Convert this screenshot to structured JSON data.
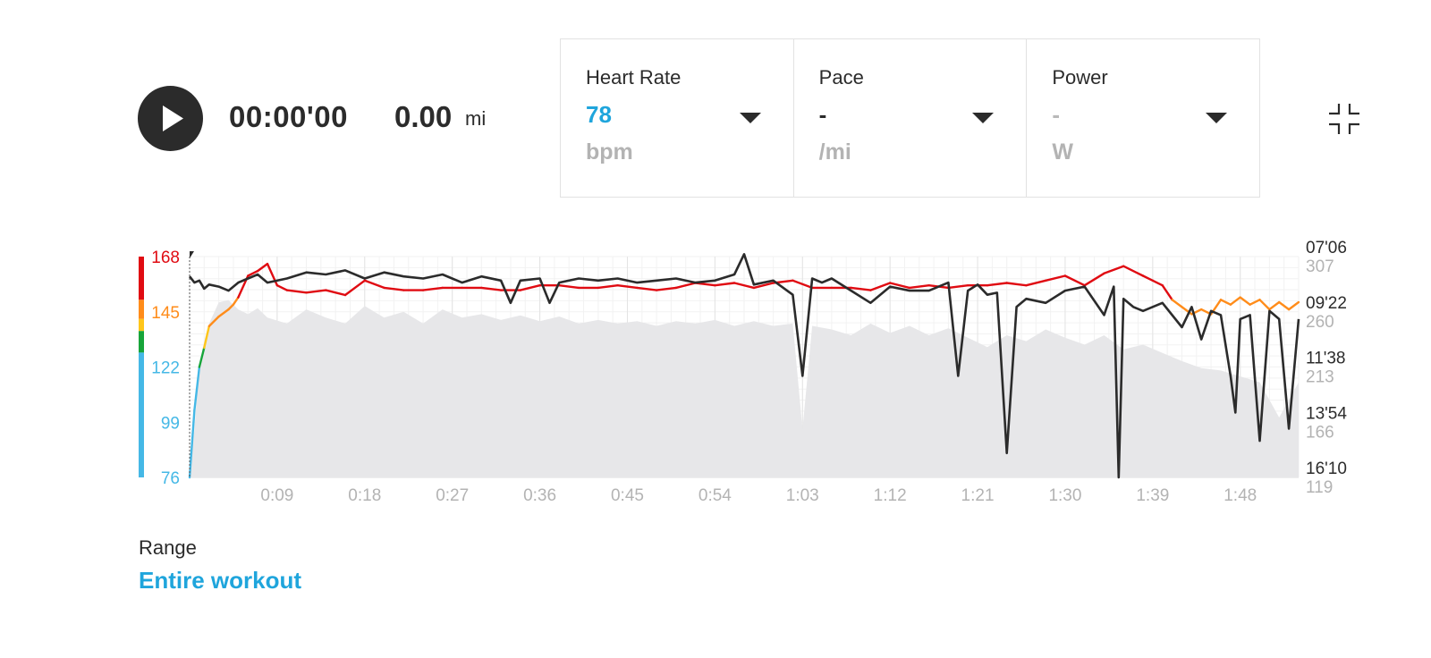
{
  "player": {
    "elapsed": "00:00'00",
    "distance": "0.00",
    "distance_unit": "mi"
  },
  "metrics": [
    {
      "label": "Heart Rate",
      "value": "78",
      "unit": "bpm"
    },
    {
      "label": "Pace",
      "value": "-",
      "unit": "/mi"
    },
    {
      "label": "Power",
      "value": "-",
      "unit": "W"
    }
  ],
  "colors": {
    "accent": "#1fa5dc",
    "hr_line": "#e00b12",
    "pace_line": "#2b2b2b",
    "power_area": "#e7e7e9",
    "zone_1": "#45b8e6",
    "zone_2": "#17a53a",
    "zone_3": "#ffc61a",
    "zone_4": "#ff8c1a",
    "zone_5": "#e00b12"
  },
  "icons": {
    "play": "play-icon",
    "collapse": "collapse-icon",
    "dropdown": "chevron-down-icon"
  },
  "range": {
    "label": "Range",
    "value": "Entire workout"
  },
  "chart_data": {
    "type": "line",
    "x_ticks": [
      "0:09",
      "0:18",
      "0:27",
      "0:36",
      "0:45",
      "0:54",
      "1:03",
      "1:12",
      "1:21",
      "1:30",
      "1:39",
      "1:48"
    ],
    "x_range_min": [
      0,
      114
    ],
    "hr_axis": {
      "ticks": [
        76,
        99,
        122,
        145,
        168
      ],
      "range": [
        76,
        168
      ]
    },
    "pace_axis": {
      "ticks": [
        "07'06",
        "09'22",
        "11'38",
        "13'54",
        "16'10"
      ]
    },
    "power_axis": {
      "ticks": [
        307,
        260,
        213,
        166,
        119
      ],
      "range": [
        119,
        307
      ]
    },
    "series": [
      {
        "type": "line",
        "x": [
          0,
          0.5,
          1,
          1.5,
          2,
          3,
          4,
          4.5,
          5,
          6,
          7,
          8,
          9,
          10,
          12,
          14,
          16,
          18,
          20,
          22,
          24,
          26,
          28,
          30,
          32,
          34,
          36,
          38,
          40,
          42,
          44,
          46,
          48,
          50,
          52,
          54,
          56,
          58,
          60,
          62,
          64,
          66,
          68,
          70,
          72,
          74,
          76,
          78,
          80,
          82,
          84,
          86,
          88,
          90,
          92,
          94,
          96,
          98,
          99,
          100,
          101,
          102,
          103,
          104,
          105,
          106,
          107,
          108,
          109,
          110,
          111,
          112,
          113,
          114
        ],
        "values": [
          76,
          104,
          122,
          130,
          139,
          143,
          146,
          148,
          151,
          160,
          162,
          165,
          156,
          154,
          153,
          154,
          152,
          158,
          155,
          154,
          154,
          155,
          155,
          155,
          154,
          154,
          156,
          156,
          155,
          155,
          156,
          155,
          154,
          155,
          157,
          156,
          157,
          155,
          157,
          158,
          155,
          155,
          155,
          154,
          157,
          155,
          156,
          155,
          156,
          156,
          157,
          156,
          158,
          160,
          156,
          161,
          164,
          160,
          158,
          156,
          150,
          147,
          144,
          146,
          144,
          150,
          148,
          151,
          148,
          150,
          146,
          149,
          146,
          149
        ]
      },
      {
        "type": "line",
        "x": [
          0,
          0.5,
          1,
          1.5,
          2,
          3,
          4,
          5,
          6,
          7,
          8,
          10,
          12,
          14,
          16,
          18,
          20,
          22,
          24,
          26,
          28,
          30,
          32,
          33,
          34,
          36,
          37,
          38,
          40,
          42,
          44,
          46,
          48,
          50,
          52,
          54,
          56,
          57,
          58,
          60,
          62,
          63,
          64,
          65,
          66,
          68,
          70,
          72,
          74,
          76,
          78,
          79,
          80,
          81,
          82,
          83,
          84,
          85,
          86,
          88,
          90,
          92,
          94,
          95,
          95.5,
          96,
          97,
          98,
          100,
          102,
          103,
          104,
          105,
          106,
          107,
          107.5,
          108,
          109,
          110,
          111,
          112,
          113,
          114
        ],
        "values": [
          "07'55",
          "08'10",
          "08'05",
          "08'25",
          "08'15",
          "08'20",
          "08'30",
          "08'10",
          "08'00",
          "07'50",
          "08'10",
          "08'00",
          "07'45",
          "07'50",
          "07'40",
          "08'00",
          "07'45",
          "07'55",
          "08'00",
          "07'50",
          "08'10",
          "07'55",
          "08'05",
          "09'00",
          "08'05",
          "08'00",
          "09'00",
          "08'10",
          "08'00",
          "08'05",
          "08'00",
          "08'10",
          "08'05",
          "08'00",
          "08'10",
          "08'05",
          "07'50",
          "07'00",
          "08'15",
          "08'05",
          "08'40",
          "12'00",
          "08'00",
          "08'10",
          "08'00",
          "08'30",
          "09'00",
          "08'20",
          "08'30",
          "08'30",
          "08'10",
          "12'00",
          "08'30",
          "08'15",
          "08'40",
          "08'35",
          "15'10",
          "09'10",
          "08'50",
          "09'00",
          "08'30",
          "08'20",
          "09'30",
          "08'20",
          "16'10",
          "08'50",
          "09'10",
          "09'20",
          "09'00",
          "10'00",
          "09'10",
          "10'30",
          "09'20",
          "09'30",
          "12'00",
          "13'30",
          "09'40",
          "09'30",
          "14'40",
          "09'20",
          "09'40",
          "14'10",
          "09'40"
        ]
      },
      {
        "type": "area",
        "x": [
          0,
          0.5,
          1,
          1.5,
          2,
          3,
          4,
          5,
          6,
          7,
          8,
          10,
          12,
          14,
          16,
          18,
          20,
          22,
          24,
          26,
          28,
          30,
          32,
          34,
          36,
          38,
          40,
          42,
          44,
          46,
          48,
          50,
          52,
          54,
          56,
          58,
          60,
          62,
          63,
          64,
          66,
          68,
          70,
          72,
          74,
          76,
          78,
          80,
          82,
          84,
          86,
          88,
          90,
          92,
          94,
          96,
          98,
          100,
          102,
          104,
          106,
          108,
          110,
          112,
          114
        ],
        "values": [
          119,
          160,
          215,
          235,
          250,
          268,
          270,
          262,
          258,
          263,
          255,
          250,
          262,
          255,
          250,
          265,
          255,
          260,
          250,
          262,
          255,
          258,
          253,
          257,
          252,
          256,
          250,
          253,
          250,
          252,
          248,
          252,
          250,
          253,
          248,
          252,
          248,
          250,
          160,
          248,
          245,
          240,
          250,
          242,
          248,
          240,
          246,
          238,
          230,
          240,
          235,
          245,
          238,
          232,
          240,
          228,
          232,
          225,
          218,
          212,
          210,
          205,
          200,
          170,
          200
        ]
      }
    ]
  }
}
